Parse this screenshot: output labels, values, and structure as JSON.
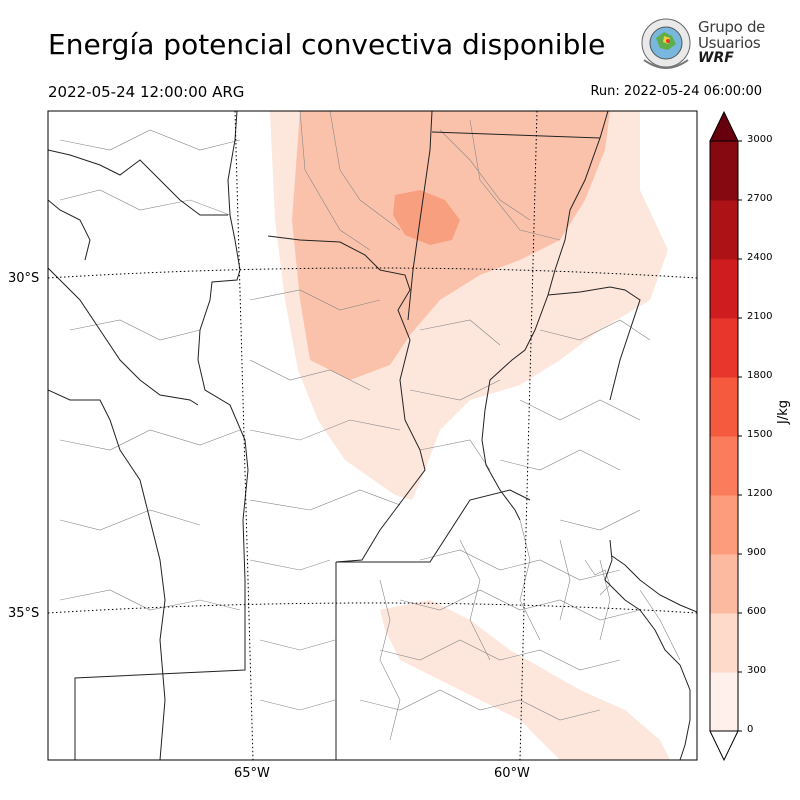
{
  "title": "Energía potencial convectiva disponible",
  "valid_time": "2022-05-24 12:00:00 ARG",
  "run_time": "Run: 2022-05-24 06:00:00",
  "logo": {
    "line1": "Grupo de",
    "line2": "Usuarios",
    "line3": "WRF"
  },
  "map": {
    "lat_labels": [
      "30°S",
      "35°S"
    ],
    "lon_labels": [
      "65°W",
      "60°W"
    ]
  },
  "colorbar": {
    "unit": "J/kg",
    "ticks": [
      "0",
      "300",
      "600",
      "900",
      "1200",
      "1500",
      "1800",
      "2100",
      "2400",
      "2700",
      "3000"
    ],
    "colors": [
      "#fff0eb",
      "#fedacb",
      "#fcbba1",
      "#fc9c7d",
      "#fb7c5c",
      "#f55a3f",
      "#e9362c",
      "#cf1d1f",
      "#ad1217",
      "#85090f"
    ],
    "extend_color": "#67000d"
  },
  "colors": {
    "cape_light": "#fde6dc",
    "cape_mid": "#fbc2ab",
    "cape_high": "#f89f7f",
    "boundary": "#222222",
    "department": "#888888"
  }
}
